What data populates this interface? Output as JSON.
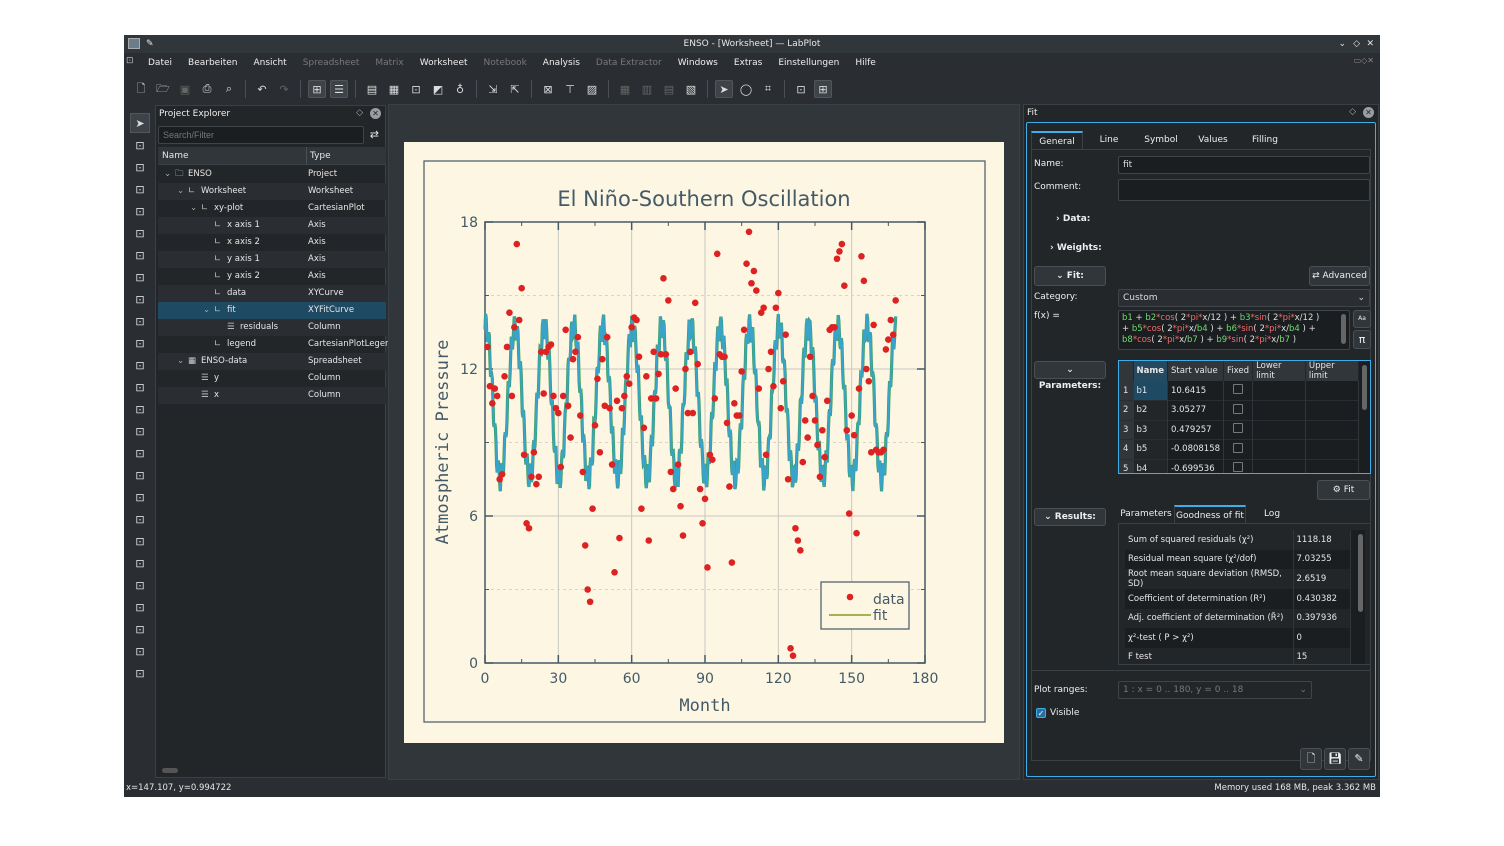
{
  "window": {
    "title": "ENSO - [Worksheet] — LabPlot"
  },
  "menu": [
    {
      "label": "Datei",
      "enabled": true
    },
    {
      "label": "Bearbeiten",
      "enabled": true
    },
    {
      "label": "Ansicht",
      "enabled": true
    },
    {
      "label": "Spreadsheet",
      "enabled": false
    },
    {
      "label": "Matrix",
      "enabled": false
    },
    {
      "label": "Worksheet",
      "enabled": true
    },
    {
      "label": "Notebook",
      "enabled": false
    },
    {
      "label": "Analysis",
      "enabled": true
    },
    {
      "label": "Data Extractor",
      "enabled": false
    },
    {
      "label": "Windows",
      "enabled": true
    },
    {
      "label": "Extras",
      "enabled": true
    },
    {
      "label": "Einstellungen",
      "enabled": true
    },
    {
      "label": "Hilfe",
      "enabled": true
    }
  ],
  "toolbar": [
    "new-project-icon",
    "open-icon",
    "save-icon",
    "print-icon",
    "print-preview-icon",
    "|",
    "undo-icon",
    "redo-icon",
    "|",
    "layout-icon",
    "layout-alt-icon",
    "|",
    "new-spreadsheet-icon",
    "new-matrix-icon",
    "new-worksheet-icon",
    "new-plot-icon",
    "new-notebook-icon",
    "|",
    "import-icon",
    "export-icon",
    "|",
    "zoom-icon",
    "fit-page-icon",
    "image-icon",
    "|",
    "grid-layout-icon",
    "vertical-layout-icon",
    "horizontal-layout-icon",
    "break-layout-icon",
    "|",
    "select-cursor-icon",
    "mouse-icon",
    "crosshair-icon",
    "|",
    "zoom-select-icon",
    "plot-nav-icon"
  ],
  "explorer": {
    "title": "Project Explorer",
    "search_placeholder": "Search/Filter",
    "columns": [
      "Name",
      "Type"
    ],
    "rows": [
      {
        "name": "ENSO",
        "type": "Project",
        "level": 0,
        "icon": "folder-icon"
      },
      {
        "name": "Worksheet",
        "type": "Worksheet",
        "level": 1,
        "icon": "worksheet-icon"
      },
      {
        "name": "xy-plot",
        "type": "CartesianPlot",
        "level": 2,
        "icon": "plot-icon"
      },
      {
        "name": "x axis 1",
        "type": "Axis",
        "level": 3,
        "icon": "axis-icon"
      },
      {
        "name": "x axis 2",
        "type": "Axis",
        "level": 3,
        "icon": "axis-icon"
      },
      {
        "name": "y axis 1",
        "type": "Axis",
        "level": 3,
        "icon": "axis-icon"
      },
      {
        "name": "y axis 2",
        "type": "Axis",
        "level": 3,
        "icon": "axis-icon"
      },
      {
        "name": "data",
        "type": "XYCurve",
        "level": 3,
        "icon": "curve-icon"
      },
      {
        "name": "fit",
        "type": "XYFitCurve",
        "level": 3,
        "icon": "fit-curve-icon",
        "selected": true
      },
      {
        "name": "residuals",
        "type": "Column",
        "level": 4,
        "icon": "column-icon"
      },
      {
        "name": "legend",
        "type": "CartesianPlotLegend",
        "level": 3,
        "icon": "legend-icon"
      },
      {
        "name": "ENSO-data",
        "type": "Spreadsheet",
        "level": 1,
        "icon": "spreadsheet-icon"
      },
      {
        "name": "y",
        "type": "Column",
        "level": 2,
        "icon": "column-icon"
      },
      {
        "name": "x",
        "type": "Column",
        "level": 2,
        "icon": "column-icon"
      }
    ]
  },
  "chart_data": {
    "type": "scatter",
    "title": "El Niño-Southern Oscillation",
    "xlabel": "Month",
    "ylabel": "Atmospheric Pressure",
    "xlim": [
      0,
      180
    ],
    "ylim": [
      0,
      18
    ],
    "xticks": [
      0,
      30,
      60,
      90,
      120,
      150,
      180
    ],
    "yticks": [
      0,
      6,
      12,
      18
    ],
    "grid": true,
    "legend": {
      "placement": "bottom-right",
      "entries": [
        "data",
        "fit"
      ]
    },
    "colors": {
      "data": "#dd2222",
      "fit": "#3aa3c9",
      "background": "#fdf6e3"
    },
    "series": [
      {
        "name": "data",
        "x_start": 1,
        "x_step": 1,
        "y": [
          12.9,
          11.3,
          10.6,
          11.2,
          10.9,
          7.5,
          7.7,
          11.7,
          12.9,
          14.3,
          10.9,
          13.7,
          17.1,
          14.0,
          15.3,
          8.5,
          5.7,
          5.5,
          7.6,
          8.6,
          7.3,
          7.6,
          12.7,
          11.0,
          12.7,
          12.9,
          13.0,
          10.9,
          10.4,
          10.2,
          8.0,
          10.9,
          13.6,
          10.5,
          9.2,
          12.4,
          12.7,
          13.3,
          10.1,
          7.8,
          4.8,
          3.0,
          2.5,
          6.3,
          9.7,
          11.6,
          8.6,
          12.4,
          10.5,
          13.3,
          10.4,
          8.1,
          3.7,
          10.7,
          5.1,
          10.4,
          10.9,
          11.7,
          11.4,
          13.7,
          14.1,
          14.0,
          12.5,
          6.3,
          9.6,
          11.7,
          5.0,
          10.8,
          12.7,
          10.8,
          11.8,
          12.6,
          15.7,
          12.6,
          14.8,
          7.8,
          7.1,
          11.2,
          8.1,
          6.4,
          5.2,
          12.0,
          10.2,
          12.7,
          10.2,
          14.7,
          12.2,
          7.1,
          5.7,
          6.7,
          3.9,
          8.5,
          8.3,
          10.8,
          16.7,
          12.6,
          12.5,
          12.5,
          9.8,
          7.2,
          4.1,
          10.6,
          10.1,
          10.1,
          11.9,
          13.6,
          16.3,
          17.6,
          15.5,
          16.0,
          15.2,
          11.2,
          14.3,
          14.5,
          8.5,
          12.0,
          12.7,
          11.3,
          14.5,
          15.1,
          10.4,
          11.5,
          13.4,
          7.5,
          0.6,
          0.3,
          5.5,
          5.0,
          4.6,
          8.2,
          9.9,
          9.2,
          12.5,
          10.9,
          9.9,
          8.9,
          7.6,
          9.5,
          8.4,
          10.7,
          13.6,
          13.7,
          13.7,
          16.5,
          16.8,
          17.1,
          15.4,
          9.5,
          6.1,
          10.1,
          9.3,
          5.3,
          11.2,
          16.6,
          15.6,
          12.0,
          11.5,
          8.6,
          13.8,
          8.7,
          8.6,
          8.6,
          8.7,
          12.8,
          13.2,
          14.0,
          13.4,
          14.8
        ]
      },
      {
        "name": "fit",
        "type": "line"
      }
    ]
  },
  "fit": {
    "title": "Fit",
    "tabs": [
      "General",
      "Line",
      "Symbol",
      "Values",
      "Filling"
    ],
    "active_tab": "General",
    "name_label": "Name:",
    "name_value": "fit",
    "comment_label": "Comment:",
    "comment_value": "",
    "data_label": "Data:",
    "weights_label": "Weights:",
    "fit_label": "Fit:",
    "advanced_label": "Advanced",
    "category_label": "Category:",
    "category_value": "Custom",
    "fx_label": "f(x) =",
    "formula": "b1 + b2*cos( 2*pi*x/12 ) + b3*sin( 2*pi*x/12 ) + b5*cos( 2*pi*x/b4 ) + b6*sin( 2*pi*x/b4 ) + b8*cos( 2*pi*x/b7 ) + b9*sin( 2*pi*x/b7 )",
    "parameters_label": "Parameters:",
    "param_columns": [
      "Name",
      "Start value",
      "Fixed",
      "Lower limit",
      "Upper limit"
    ],
    "params": [
      {
        "idx": "1",
        "name": "b1",
        "start": "10.6415",
        "fixed": false
      },
      {
        "idx": "2",
        "name": "b2",
        "start": "3.05277",
        "fixed": false
      },
      {
        "idx": "3",
        "name": "b3",
        "start": "0.479257",
        "fixed": false
      },
      {
        "idx": "4",
        "name": "b5",
        "start": "-0.0808158",
        "fixed": false
      },
      {
        "idx": "5",
        "name": "b4",
        "start": "-0.699536",
        "fixed": false
      }
    ],
    "fit_button": "Fit",
    "results_label": "Results:",
    "result_tabs": [
      "Parameters",
      "Goodness of fit",
      "Log"
    ],
    "active_result_tab": "Goodness of fit",
    "results": [
      {
        "k": "Sum of squared residuals (χ²)",
        "v": "1118.18"
      },
      {
        "k": "Residual mean square (χ²/dof)",
        "v": "7.03255"
      },
      {
        "k": "Root mean square deviation (RMSD, SD)",
        "v": "2.6519"
      },
      {
        "k": "Coefficient of determination (R²)",
        "v": "0.430382"
      },
      {
        "k": "Adj. coefficient of determination (R̄²)",
        "v": "0.397936"
      },
      {
        "k": "χ²-test ( P > χ²)",
        "v": "0"
      },
      {
        "k": "F test",
        "v": "15"
      }
    ],
    "plot_ranges_label": "Plot ranges:",
    "plot_ranges_value": "1 : x = 0 .. 180, y = 0 .. 18",
    "visible_label": "Visible",
    "visible": true
  },
  "status": {
    "coords": "x=147.107, y=0.994722",
    "memory": "Memory used 168 MB, peak 3.362 MB"
  }
}
